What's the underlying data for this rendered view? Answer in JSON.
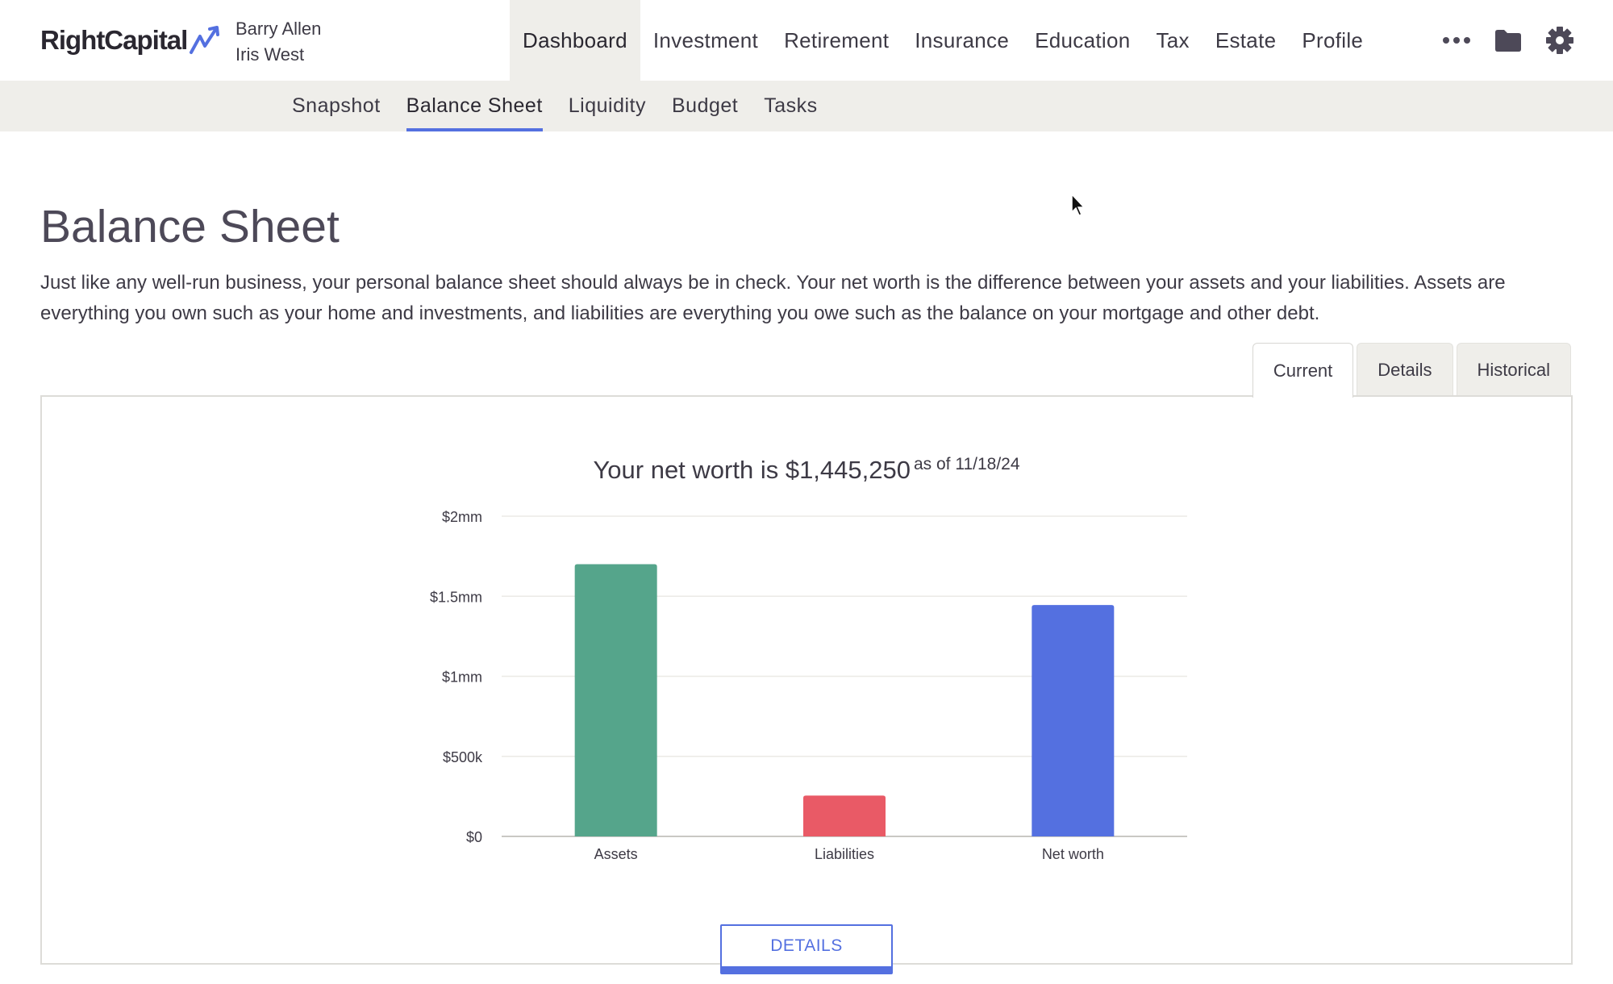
{
  "header": {
    "logo_text": "RightCapital",
    "clients": [
      "Barry Allen",
      "Iris West"
    ],
    "nav": [
      {
        "label": "Dashboard",
        "active": true
      },
      {
        "label": "Investment",
        "active": false
      },
      {
        "label": "Retirement",
        "active": false
      },
      {
        "label": "Insurance",
        "active": false
      },
      {
        "label": "Education",
        "active": false
      },
      {
        "label": "Tax",
        "active": false
      },
      {
        "label": "Estate",
        "active": false
      },
      {
        "label": "Profile",
        "active": false
      }
    ],
    "icons": [
      "more-icon",
      "folder-icon",
      "gear-icon"
    ]
  },
  "subnav": [
    {
      "label": "Snapshot",
      "active": false
    },
    {
      "label": "Balance Sheet",
      "active": true
    },
    {
      "label": "Liquidity",
      "active": false
    },
    {
      "label": "Budget",
      "active": false
    },
    {
      "label": "Tasks",
      "active": false
    }
  ],
  "main": {
    "title": "Balance Sheet",
    "intro": "Just like any well-run business, your personal balance sheet should always be in check. Your net worth is the difference between your assets and your liabilities. Assets are everything you own such as your home and investments, and liabilities are everything you owe such as the balance on your mortgage and other debt.",
    "tabs": [
      {
        "label": "Current",
        "active": true
      },
      {
        "label": "Details",
        "active": false
      },
      {
        "label": "Historical",
        "active": false
      }
    ],
    "chart_heading": "Your net worth is $1,445,250",
    "chart_heading_date": "as of 11/18/24",
    "details_button": "DETAILS"
  },
  "colors": {
    "accent": "#5470e0",
    "assets": "#55a58b",
    "liabilities": "#e95a66",
    "net_worth": "#5470e0"
  },
  "chart_data": {
    "type": "bar",
    "categories": [
      "Assets",
      "Liabilities",
      "Net worth"
    ],
    "values": [
      1700000,
      254750,
      1445250
    ],
    "colors": [
      "#55a58b",
      "#e95a66",
      "#5470e0"
    ],
    "yticks": [
      0,
      500000,
      1000000,
      1500000,
      2000000
    ],
    "ytick_labels": [
      "$0",
      "$500k",
      "$1mm",
      "$1.5mm",
      "$2mm"
    ],
    "ylim": [
      0,
      2000000
    ],
    "grid": true,
    "legend": "none"
  }
}
